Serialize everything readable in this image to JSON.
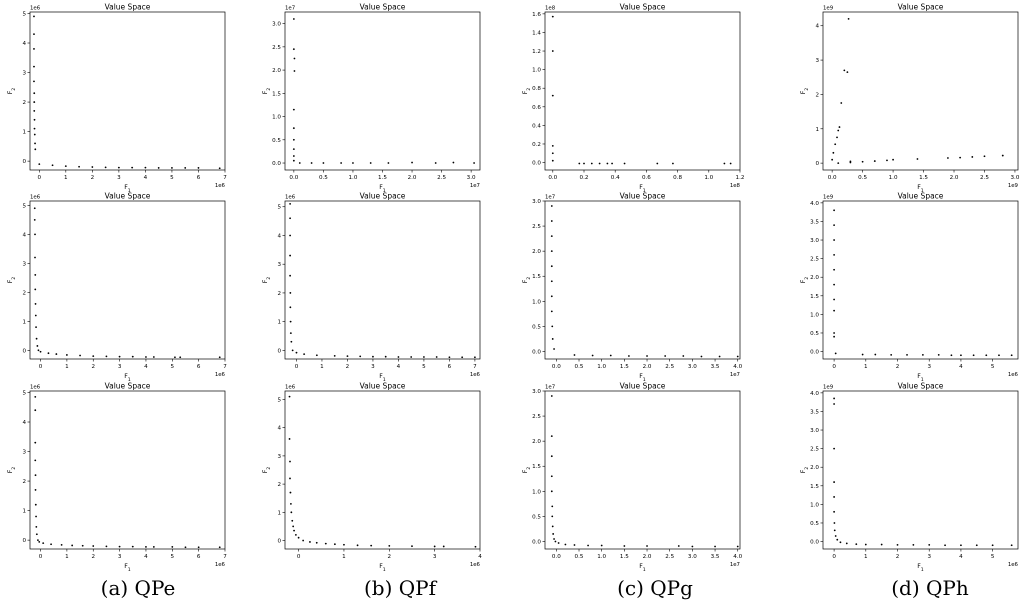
{
  "captions": [
    "(a) QPe",
    "(b) QPf",
    "(c) QPg",
    "(d) QPh"
  ],
  "colors": {
    "points": "#000000",
    "axes": "#000000",
    "background": "#ffffff"
  },
  "chart_data": [
    {
      "panel": "a1",
      "type": "scatter",
      "title": "Value Space",
      "xlabel": "F_1",
      "ylabel": "F_2",
      "x_exponent": "1e6",
      "y_exponent": "1e6",
      "xlim": [
        -0.35,
        7.0
      ],
      "ylim": [
        -0.3,
        5.05
      ],
      "xticks": [
        0,
        1,
        2,
        3,
        4,
        5,
        6,
        7
      ],
      "yticks": [
        0,
        1,
        2,
        3,
        4,
        5
      ],
      "grid": false,
      "x": [
        -0.2,
        -0.2,
        -0.2,
        -0.2,
        -0.2,
        -0.19,
        -0.19,
        -0.19,
        -0.18,
        -0.18,
        -0.17,
        -0.16,
        -0.15,
        0.0,
        0.5,
        1.0,
        1.5,
        2.0,
        2.5,
        3.0,
        3.5,
        4.0,
        4.5,
        5.0,
        5.5,
        6.0,
        6.8
      ],
      "y": [
        4.9,
        4.3,
        3.8,
        3.2,
        2.7,
        2.3,
        2.0,
        1.7,
        1.4,
        1.1,
        0.9,
        0.6,
        0.4,
        -0.1,
        -0.14,
        -0.17,
        -0.19,
        -0.2,
        -0.21,
        -0.22,
        -0.22,
        -0.22,
        -0.23,
        -0.23,
        -0.23,
        -0.23,
        -0.24
      ]
    },
    {
      "panel": "b1",
      "type": "scatter",
      "title": "Value Space",
      "xlabel": "F_1",
      "ylabel": "F_2",
      "x_exponent": "1e7",
      "y_exponent": "1e7",
      "xlim": [
        -0.15,
        3.15
      ],
      "ylim": [
        -0.15,
        3.25
      ],
      "xticks": [
        0.0,
        0.5,
        1.0,
        1.5,
        2.0,
        2.5,
        3.0
      ],
      "yticks": [
        0.0,
        0.5,
        1.0,
        1.5,
        2.0,
        2.5,
        3.0
      ],
      "grid": false,
      "x": [
        0.0,
        0.0,
        0.01,
        0.01,
        0.0,
        0.0,
        0.0,
        0.0,
        0.0,
        0.0,
        0.1,
        0.3,
        0.5,
        0.8,
        1.0,
        1.3,
        1.6,
        2.0,
        2.4,
        2.7,
        3.05
      ],
      "y": [
        3.1,
        2.45,
        2.25,
        1.98,
        1.15,
        0.75,
        0.5,
        0.3,
        0.15,
        0.05,
        0.0,
        0.0,
        0.0,
        0.0,
        0.0,
        0.0,
        0.0,
        0.01,
        0.0,
        0.01,
        0.0
      ]
    },
    {
      "panel": "c1",
      "type": "scatter",
      "title": "Value Space",
      "xlabel": "F_1",
      "ylabel": "F_2",
      "x_exponent": "1e8",
      "y_exponent": "1e8",
      "xlim": [
        -0.05,
        1.2
      ],
      "ylim": [
        -0.08,
        1.62
      ],
      "xticks": [
        0.0,
        0.2,
        0.4,
        0.6,
        0.8,
        1.0,
        1.2
      ],
      "yticks": [
        0.0,
        0.2,
        0.4,
        0.6,
        0.8,
        1.0,
        1.2,
        1.4,
        1.6
      ],
      "grid": false,
      "x": [
        0.0,
        0.0,
        0.0,
        0.0,
        0.0,
        0.0,
        0.17,
        0.2,
        0.25,
        0.3,
        0.35,
        0.38,
        0.46,
        0.67,
        0.77,
        1.1,
        1.14
      ],
      "y": [
        1.57,
        1.2,
        0.72,
        0.18,
        0.1,
        0.02,
        -0.01,
        -0.01,
        -0.01,
        -0.01,
        -0.01,
        -0.01,
        -0.01,
        -0.01,
        -0.01,
        -0.01,
        -0.01
      ]
    },
    {
      "panel": "d1",
      "type": "scatter",
      "title": "Value Space",
      "xlabel": "F_1",
      "ylabel": "F_2",
      "x_exponent": "1e9",
      "y_exponent": "1e9",
      "xlim": [
        -0.15,
        3.05
      ],
      "ylim": [
        -0.2,
        4.4
      ],
      "xticks": [
        0.0,
        0.5,
        1.0,
        1.5,
        2.0,
        2.5,
        3.0
      ],
      "yticks": [
        0,
        1,
        2,
        3,
        4
      ],
      "grid": false,
      "x": [
        0.0,
        0.02,
        0.05,
        0.08,
        0.1,
        0.12,
        0.15,
        0.2,
        0.25,
        0.27,
        0.3,
        0.1,
        0.3,
        0.5,
        0.7,
        0.9,
        1.0,
        1.4,
        1.9,
        2.1,
        2.3,
        2.5,
        2.8
      ],
      "y": [
        0.1,
        0.3,
        0.55,
        0.75,
        0.95,
        1.05,
        1.75,
        2.7,
        2.65,
        4.2,
        0.05,
        0.0,
        0.02,
        0.04,
        0.06,
        0.08,
        0.1,
        0.12,
        0.15,
        0.16,
        0.18,
        0.2,
        0.22
      ]
    },
    {
      "panel": "a2",
      "type": "scatter",
      "title": "Value Space",
      "xlabel": "F_1",
      "ylabel": "F_2",
      "x_exponent": "1e6",
      "y_exponent": "1e6",
      "xlim": [
        -0.4,
        7.0
      ],
      "ylim": [
        -0.3,
        5.15
      ],
      "xticks": [
        0,
        1,
        2,
        3,
        4,
        5,
        6,
        7
      ],
      "yticks": [
        0,
        1,
        2,
        3,
        4,
        5
      ],
      "grid": false,
      "x": [
        -0.22,
        -0.22,
        -0.21,
        -0.21,
        -0.2,
        -0.2,
        -0.19,
        -0.18,
        -0.17,
        -0.15,
        -0.12,
        -0.08,
        0.0,
        0.3,
        0.6,
        1.0,
        1.5,
        2.0,
        2.5,
        3.0,
        3.5,
        4.0,
        4.3,
        5.1,
        5.3,
        6.8
      ],
      "y": [
        4.9,
        4.5,
        4.0,
        3.2,
        2.6,
        2.1,
        1.6,
        1.2,
        0.8,
        0.4,
        0.15,
        0.0,
        -0.05,
        -0.1,
        -0.13,
        -0.16,
        -0.18,
        -0.2,
        -0.21,
        -0.22,
        -0.22,
        -0.23,
        -0.23,
        -0.24,
        -0.24,
        -0.24
      ]
    },
    {
      "panel": "b2",
      "type": "scatter",
      "title": "Value Space",
      "xlabel": "F_1",
      "ylabel": "F_2",
      "x_exponent": "1e6",
      "y_exponent": "1e6",
      "xlim": [
        -0.45,
        7.2
      ],
      "ylim": [
        -0.3,
        5.2
      ],
      "xticks": [
        0,
        1,
        2,
        3,
        4,
        5,
        6,
        7
      ],
      "yticks": [
        0,
        1,
        2,
        3,
        4,
        5
      ],
      "grid": false,
      "x": [
        -0.25,
        -0.25,
        -0.25,
        -0.25,
        -0.25,
        -0.24,
        -0.24,
        -0.23,
        -0.22,
        -0.2,
        -0.15,
        0.0,
        0.3,
        0.8,
        1.5,
        2.0,
        2.5,
        3.0,
        3.5,
        4.0,
        4.5,
        5.0,
        5.5,
        6.0,
        6.5,
        7.0
      ],
      "y": [
        5.1,
        4.6,
        4.0,
        3.3,
        2.6,
        2.0,
        1.5,
        1.0,
        0.6,
        0.3,
        0.0,
        -0.08,
        -0.13,
        -0.17,
        -0.19,
        -0.2,
        -0.21,
        -0.22,
        -0.22,
        -0.23,
        -0.23,
        -0.23,
        -0.23,
        -0.24,
        -0.24,
        -0.24
      ]
    },
    {
      "panel": "c2",
      "type": "scatter",
      "title": "Value Space",
      "xlabel": "F_1",
      "ylabel": "F_2",
      "x_exponent": "1e7",
      "y_exponent": "1e7",
      "xlim": [
        -0.25,
        4.05
      ],
      "ylim": [
        -0.15,
        3.0
      ],
      "xticks": [
        0.0,
        0.5,
        1.0,
        1.5,
        2.0,
        2.5,
        3.0,
        3.5,
        4.0
      ],
      "yticks": [
        0.0,
        0.5,
        1.0,
        1.5,
        2.0,
        2.5,
        3.0
      ],
      "grid": false,
      "x": [
        -0.1,
        -0.1,
        -0.1,
        -0.1,
        -0.1,
        -0.1,
        -0.1,
        -0.1,
        -0.09,
        -0.08,
        -0.05,
        0.4,
        0.8,
        1.2,
        1.6,
        2.0,
        2.4,
        2.8,
        3.2,
        3.6,
        4.0
      ],
      "y": [
        2.9,
        2.6,
        2.3,
        2.0,
        1.7,
        1.4,
        1.1,
        0.8,
        0.5,
        0.25,
        0.05,
        -0.07,
        -0.08,
        -0.08,
        -0.09,
        -0.09,
        -0.09,
        -0.09,
        -0.1,
        -0.1,
        -0.1
      ]
    },
    {
      "panel": "d2",
      "type": "scatter",
      "title": "Value Space",
      "xlabel": "F_1",
      "ylabel": "F_2",
      "x_exponent": "1e6",
      "y_exponent": "1e9",
      "xlim": [
        -0.35,
        5.8
      ],
      "ylim": [
        -0.2,
        4.05
      ],
      "xticks": [
        0,
        1,
        2,
        3,
        4,
        5
      ],
      "yticks": [
        0.0,
        0.5,
        1.0,
        1.5,
        2.0,
        2.5,
        3.0,
        3.5,
        4.0
      ],
      "grid": false,
      "x": [
        0.0,
        0.0,
        0.0,
        0.0,
        0.0,
        0.0,
        0.0,
        0.0,
        0.0,
        0.0,
        0.05,
        0.9,
        1.3,
        1.8,
        2.3,
        2.8,
        3.3,
        3.7,
        4.0,
        4.4,
        4.8,
        5.2,
        5.6
      ],
      "y": [
        3.8,
        3.4,
        3.0,
        2.6,
        2.2,
        1.8,
        1.4,
        1.1,
        0.5,
        0.4,
        -0.05,
        -0.08,
        -0.08,
        -0.09,
        -0.09,
        -0.09,
        -0.09,
        -0.1,
        -0.1,
        -0.1,
        -0.1,
        -0.1,
        -0.1
      ]
    },
    {
      "panel": "a3",
      "type": "scatter",
      "title": "Value Space",
      "xlabel": "F_1",
      "ylabel": "F_2",
      "x_exponent": "1e6",
      "y_exponent": "1e6",
      "xlim": [
        -0.4,
        7.0
      ],
      "ylim": [
        -0.3,
        5.05
      ],
      "xticks": [
        0,
        1,
        2,
        3,
        4,
        5,
        6,
        7
      ],
      "yticks": [
        0,
        1,
        2,
        3,
        4,
        5
      ],
      "grid": false,
      "x": [
        -0.2,
        -0.2,
        -0.2,
        -0.2,
        -0.19,
        -0.19,
        -0.18,
        -0.17,
        -0.16,
        -0.14,
        -0.1,
        -0.05,
        0.1,
        0.4,
        0.8,
        1.2,
        1.6,
        2.0,
        2.5,
        3.0,
        3.5,
        4.0,
        4.3,
        5.0,
        5.5,
        6.0,
        6.8
      ],
      "y": [
        4.85,
        4.4,
        3.3,
        2.7,
        2.2,
        1.7,
        1.2,
        0.8,
        0.45,
        0.2,
        0.0,
        -0.06,
        -0.1,
        -0.14,
        -0.16,
        -0.18,
        -0.19,
        -0.2,
        -0.21,
        -0.22,
        -0.22,
        -0.23,
        -0.23,
        -0.23,
        -0.24,
        -0.24,
        -0.24
      ]
    },
    {
      "panel": "b3",
      "type": "scatter",
      "title": "Value Space",
      "xlabel": "F_1",
      "ylabel": "F_2",
      "x_exponent": "1e6",
      "y_exponent": "1e6",
      "xlim": [
        -0.3,
        4.0
      ],
      "ylim": [
        -0.3,
        5.3
      ],
      "xticks": [
        0,
        1,
        2,
        3,
        4
      ],
      "yticks": [
        0,
        1,
        2,
        3,
        4,
        5
      ],
      "grid": false,
      "x": [
        -0.2,
        -0.2,
        -0.19,
        -0.19,
        -0.18,
        -0.17,
        -0.16,
        -0.14,
        -0.12,
        -0.1,
        -0.06,
        0.0,
        0.1,
        0.25,
        0.4,
        0.6,
        0.8,
        1.0,
        1.3,
        1.6,
        2.0,
        2.5,
        3.0,
        3.2,
        3.9
      ],
      "y": [
        5.1,
        3.6,
        2.8,
        2.2,
        1.7,
        1.3,
        1.0,
        0.7,
        0.5,
        0.35,
        0.2,
        0.1,
        0.0,
        -0.05,
        -0.08,
        -0.11,
        -0.13,
        -0.15,
        -0.17,
        -0.18,
        -0.19,
        -0.2,
        -0.21,
        -0.21,
        -0.22
      ]
    },
    {
      "panel": "c3",
      "type": "scatter",
      "title": "Value Space",
      "xlabel": "F_1",
      "ylabel": "F_2",
      "x_exponent": "1e7",
      "y_exponent": "1e7",
      "xlim": [
        -0.25,
        4.05
      ],
      "ylim": [
        -0.15,
        3.0
      ],
      "xticks": [
        0.0,
        0.5,
        1.0,
        1.5,
        2.0,
        2.5,
        3.0,
        3.5,
        4.0
      ],
      "yticks": [
        0.0,
        0.5,
        1.0,
        1.5,
        2.0,
        2.5,
        3.0
      ],
      "grid": false,
      "x": [
        -0.1,
        -0.1,
        -0.1,
        -0.1,
        -0.1,
        -0.09,
        -0.09,
        -0.08,
        -0.07,
        -0.05,
        -0.02,
        0.05,
        0.2,
        0.4,
        0.7,
        1.0,
        1.5,
        2.0,
        2.7,
        3.0,
        3.5,
        4.0
      ],
      "y": [
        2.9,
        2.1,
        1.7,
        1.3,
        1.0,
        0.7,
        0.5,
        0.3,
        0.15,
        0.05,
        0.0,
        -0.03,
        -0.06,
        -0.07,
        -0.08,
        -0.08,
        -0.09,
        -0.09,
        -0.09,
        -0.1,
        -0.1,
        -0.1
      ]
    },
    {
      "panel": "d3",
      "type": "scatter",
      "title": "Value Space",
      "xlabel": "F_1",
      "ylabel": "F_2",
      "x_exponent": "1e6",
      "y_exponent": "1e9",
      "xlim": [
        -0.35,
        5.8
      ],
      "ylim": [
        -0.2,
        4.05
      ],
      "xticks": [
        0,
        1,
        2,
        3,
        4,
        5
      ],
      "yticks": [
        0.0,
        0.5,
        1.0,
        1.5,
        2.0,
        2.5,
        3.0,
        3.5,
        4.0
      ],
      "grid": false,
      "x": [
        0.0,
        0.0,
        0.0,
        0.0,
        0.0,
        0.0,
        0.01,
        0.02,
        0.05,
        0.1,
        0.2,
        0.4,
        0.7,
        1.0,
        1.5,
        2.0,
        2.5,
        3.0,
        3.5,
        4.0,
        4.5,
        5.0,
        5.6
      ],
      "y": [
        3.85,
        3.7,
        2.5,
        1.6,
        1.2,
        0.8,
        0.5,
        0.3,
        0.15,
        0.05,
        -0.02,
        -0.05,
        -0.07,
        -0.08,
        -0.08,
        -0.09,
        -0.09,
        -0.09,
        -0.1,
        -0.1,
        -0.1,
        -0.1,
        -0.1
      ]
    }
  ]
}
